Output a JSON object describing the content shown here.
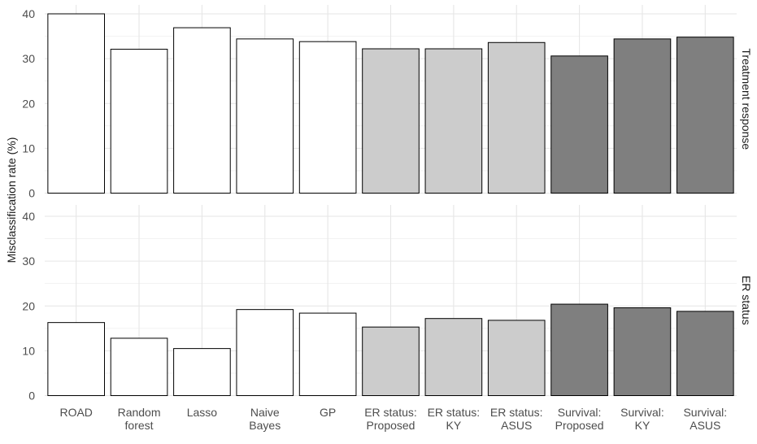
{
  "chart_data": {
    "type": "bar",
    "ylabel": "Misclassification rate (%)",
    "ylim": [
      0,
      40
    ],
    "yticks": [
      0,
      10,
      20,
      30,
      40
    ],
    "grid": true,
    "categories": [
      [
        "ROAD"
      ],
      [
        "Random",
        "forest"
      ],
      [
        "Lasso"
      ],
      [
        "Naive",
        "Bayes"
      ],
      [
        "GP"
      ],
      [
        "ER status:",
        "Proposed"
      ],
      [
        "ER status:",
        "KY"
      ],
      [
        "ER status:",
        "ASUS"
      ],
      [
        "Survival:",
        "Proposed"
      ],
      [
        "Survival:",
        "KY"
      ],
      [
        "Survival:",
        "ASUS"
      ]
    ],
    "fill_groups": [
      0,
      0,
      0,
      0,
      0,
      1,
      1,
      1,
      2,
      2,
      2
    ],
    "fill_colors": [
      "#ffffff",
      "#cccccc",
      "#7f7f7f"
    ],
    "bar_edge_color": "#000000",
    "panels": [
      {
        "label": "Treatment response",
        "values": [
          40.0,
          32.1,
          36.9,
          34.4,
          33.8,
          32.2,
          32.2,
          33.6,
          30.6,
          34.4,
          34.8
        ]
      },
      {
        "label": "ER status",
        "values": [
          16.3,
          12.8,
          10.5,
          19.2,
          18.4,
          15.3,
          17.2,
          16.8,
          20.4,
          19.6,
          18.8
        ]
      }
    ]
  }
}
